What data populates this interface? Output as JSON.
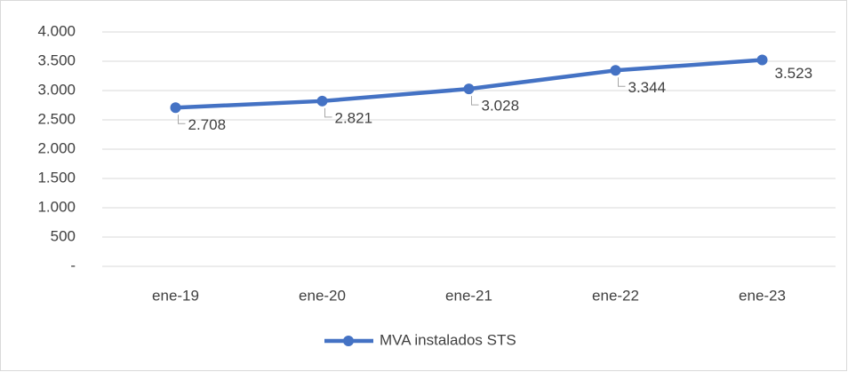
{
  "chart_data": {
    "type": "line",
    "categories": [
      "ene-19",
      "ene-20",
      "ene-21",
      "ene-22",
      "ene-23"
    ],
    "series": [
      {
        "name": "MVA instalados STS",
        "color": "#4472c4",
        "values": [
          2708,
          2821,
          3028,
          3344,
          3523
        ],
        "value_labels": [
          "2.708",
          "2.821",
          "3.028",
          "3.344",
          "3.523"
        ]
      }
    ],
    "ylim": [
      0,
      4000
    ],
    "yticks": [
      {
        "value": 0,
        "label": "-"
      },
      500,
      {
        "value": 1000,
        "label": "1.000"
      },
      {
        "value": 1500,
        "label": "1.500"
      },
      {
        "value": 2000,
        "label": "2.000"
      },
      {
        "value": 2500,
        "label": "2.500"
      },
      {
        "value": 3000,
        "label": "3.000"
      },
      {
        "value": 3500,
        "label": "3.500"
      },
      {
        "value": 4000,
        "label": "4.000"
      }
    ],
    "grid": true,
    "legend": "bottom"
  }
}
